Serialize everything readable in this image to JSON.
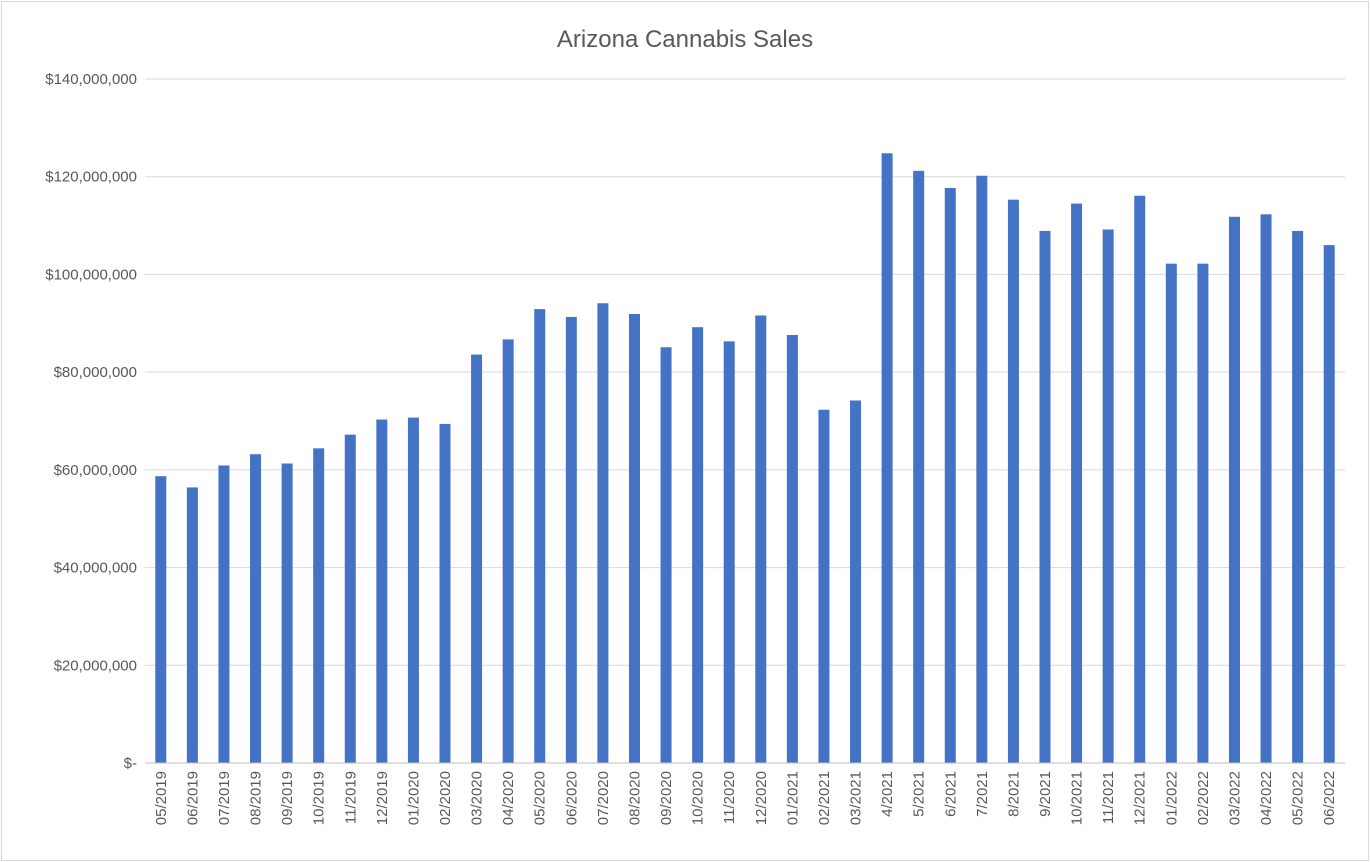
{
  "chart_data": {
    "type": "bar",
    "title": "Arizona Cannabis Sales",
    "xlabel": "",
    "ylabel": "",
    "ylim": [
      0,
      140000000
    ],
    "yticks": [
      0,
      20000000,
      40000000,
      60000000,
      80000000,
      100000000,
      120000000,
      140000000
    ],
    "ytick_labels": [
      "$-",
      "$20,000,000",
      "$40,000,000",
      "$60,000,000",
      "$80,000,000",
      "$100,000,000",
      "$120,000,000",
      "$140,000,000"
    ],
    "grid": true,
    "legend": "none",
    "bar_color": "#4472c4",
    "categories": [
      "05/2019",
      "06/2019",
      "07/2019",
      "08/2019",
      "09/2019",
      "10/2019",
      "11/2019",
      "12/2019",
      "01/2020",
      "02/2020",
      "03/2020",
      "04/2020",
      "05/2020",
      "06/2020",
      "07/2020",
      "08/2020",
      "09/2020",
      "10/2020",
      "11/2020",
      "12/2020",
      "01/2021",
      "02/2021",
      "03/2021",
      "4/2021",
      "5/2021",
      "6/2021",
      "7/2021",
      "8/2021",
      "9/2021",
      "10/2021",
      "11/2021",
      "12/2021",
      "01/2022",
      "02/2022",
      "03/2022",
      "04/2022",
      "05/2022",
      "06/2022"
    ],
    "values": [
      58700000,
      56400000,
      60900000,
      63200000,
      61300000,
      64400000,
      67200000,
      70300000,
      70700000,
      69400000,
      83600000,
      86700000,
      92900000,
      91300000,
      94100000,
      91900000,
      85100000,
      89200000,
      86300000,
      91600000,
      87600000,
      72300000,
      74200000,
      124800000,
      121200000,
      117700000,
      120200000,
      115300000,
      108900000,
      114500000,
      109200000,
      116100000,
      102200000,
      102200000,
      111800000,
      112300000,
      108900000,
      106000000
    ]
  }
}
